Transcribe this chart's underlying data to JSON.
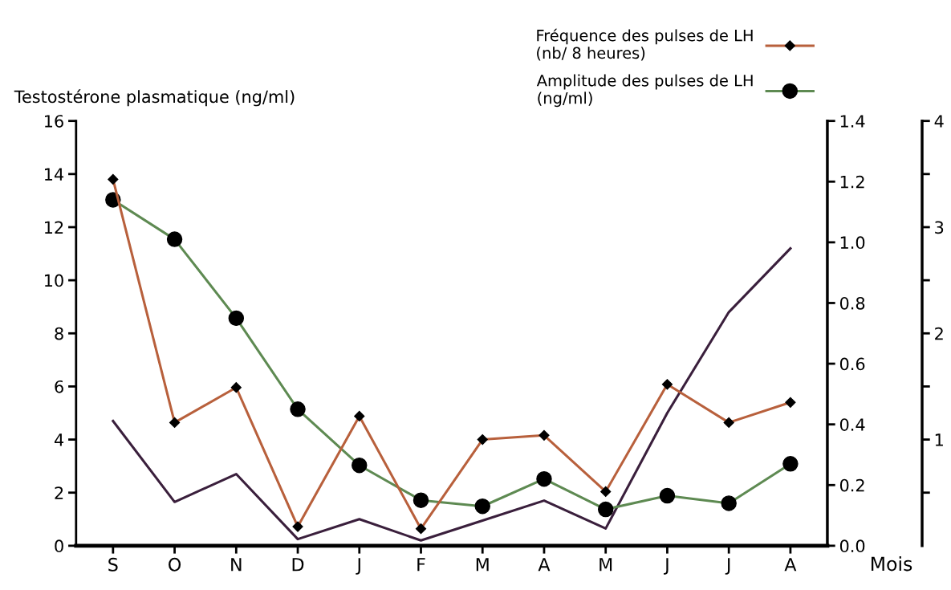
{
  "chart_data": {
    "type": "line",
    "categories": [
      "S",
      "O",
      "N",
      "D",
      "J",
      "F",
      "M",
      "A",
      "M",
      "J",
      "J",
      "A"
    ],
    "xlabel": "Mois",
    "ylabel": "Testostérone plasmatique (ng/ml)",
    "ylim": [
      0,
      16
    ],
    "yticks": [
      0,
      2,
      4,
      6,
      8,
      10,
      12,
      14,
      16
    ],
    "y2lim": [
      0,
      1.4
    ],
    "y2ticks": [
      {
        "value": 0,
        "label": "0.0"
      },
      {
        "value": 0.2,
        "label": "0.2"
      },
      {
        "value": 0.4,
        "label": "0.4"
      },
      {
        "value": 0.6,
        "label": "0.6"
      },
      {
        "value": 0.8,
        "label": "0.8"
      },
      {
        "value": 1.0,
        "label": "1.0"
      },
      {
        "value": 1.2,
        "label": "1.2"
      },
      {
        "value": 1.4,
        "label": "1.4"
      }
    ],
    "y3lim": [
      0,
      4
    ],
    "y3ticks": [
      {
        "value": 0.5,
        "label": null
      },
      1,
      {
        "value": 1.5,
        "label": null
      },
      2,
      {
        "value": 2.5,
        "label": null
      },
      3,
      {
        "value": 3.5,
        "label": null
      },
      4
    ],
    "series": [
      {
        "color": "#3a1f3c",
        "marker": "none",
        "values": [
          4.7,
          1.65,
          2.7,
          0.25,
          1.0,
          0.2,
          0.95,
          1.7,
          0.65,
          5.0,
          8.8,
          11.2
        ]
      },
      {
        "name": "Fréquence des pulses de LH\n(nb/ 8 heures)",
        "axis": "y3",
        "color": "#b8603c",
        "marker": "diamond",
        "values": [
          3.45,
          1.16,
          1.49,
          0.18,
          1.22,
          0.16,
          1.0,
          1.04,
          0.51,
          1.52,
          1.16,
          1.35
        ]
      },
      {
        "name": "Amplitude des pulses de LH\n(ng/ml)",
        "axis": "y2",
        "color": "#5e8a52",
        "marker": "circle",
        "values": [
          1.14,
          1.01,
          0.75,
          0.45,
          0.265,
          0.15,
          0.13,
          0.22,
          0.12,
          0.165,
          0.14,
          0.27
        ]
      }
    ],
    "legend": "top right",
    "grid": false
  }
}
